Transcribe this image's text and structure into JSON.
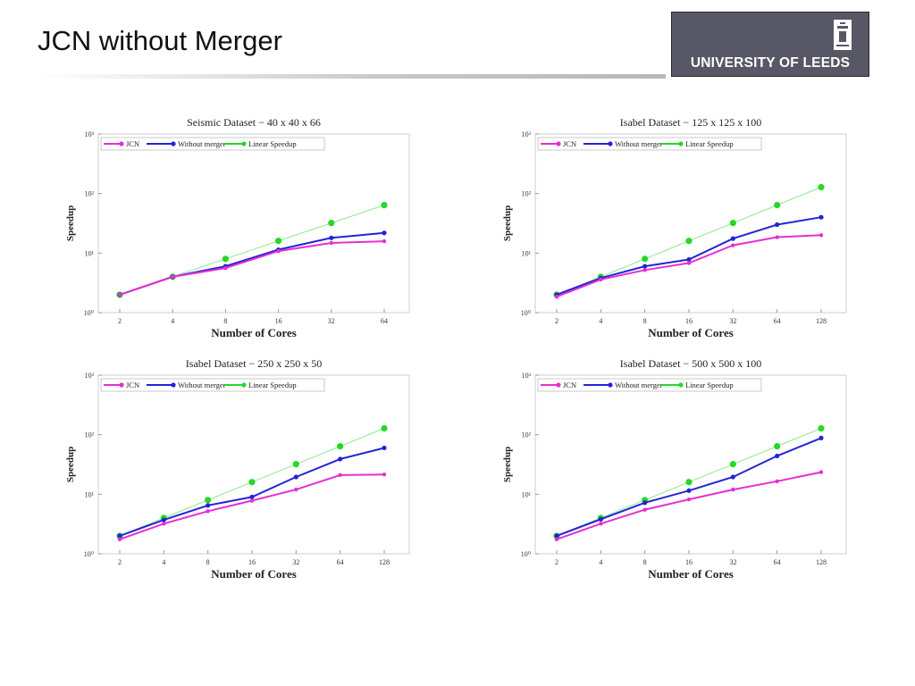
{
  "slide": {
    "title": "JCN without Merger",
    "logo_text": "UNIVERSITY OF LEEDS"
  },
  "colors": {
    "jcn": "#e52fd3",
    "without_merger": "#2323d6",
    "linear": "#28d728"
  },
  "chart_data": [
    {
      "type": "line",
      "title": "Seismic Dataset − 40 x 40 x 66",
      "xlabel": "Number of Cores",
      "ylabel": "Speedup",
      "y_scale": "log",
      "ylim": [
        1,
        1000
      ],
      "y_ticks": [
        "10⁰",
        "10¹",
        "10²",
        "10³"
      ],
      "categories": [
        "2",
        "4",
        "8",
        "16",
        "32",
        "64"
      ],
      "legend": [
        "JCN",
        "Without merger",
        "Linear Speedup"
      ],
      "series": [
        {
          "name": "JCN",
          "values": [
            2,
            4,
            5.6,
            10.8,
            14.8,
            15.8
          ]
        },
        {
          "name": "Without merger",
          "values": [
            2,
            4,
            6,
            11.4,
            18,
            21.8
          ]
        },
        {
          "name": "Linear Speedup",
          "values": [
            2,
            4,
            8,
            16,
            32,
            64
          ]
        }
      ]
    },
    {
      "type": "line",
      "title": "Isabel Dataset − 125 x 125 x 100",
      "xlabel": "Number of Cores",
      "ylabel": "Speedup",
      "y_scale": "log",
      "ylim": [
        1,
        1000
      ],
      "y_ticks": [
        "10⁰",
        "10¹",
        "10²",
        "10³"
      ],
      "categories": [
        "2",
        "4",
        "8",
        "16",
        "32",
        "64",
        "128"
      ],
      "legend": [
        "JCN",
        "Without merger",
        "Linear Speedup"
      ],
      "series": [
        {
          "name": "JCN",
          "values": [
            1.85,
            3.6,
            5.2,
            6.8,
            13.5,
            18.5,
            20
          ]
        },
        {
          "name": "Without merger",
          "values": [
            2,
            3.8,
            6,
            7.8,
            17.5,
            30,
            40
          ]
        },
        {
          "name": "Linear Speedup",
          "values": [
            2,
            4,
            8,
            16,
            32,
            64,
            128
          ]
        }
      ]
    },
    {
      "type": "line",
      "title": "Isabel Dataset − 250 x 250 x 50",
      "xlabel": "Number of Cores",
      "ylabel": "Speedup",
      "y_scale": "log",
      "ylim": [
        1,
        1000
      ],
      "y_ticks": [
        "10⁰",
        "10¹",
        "10²",
        "10³"
      ],
      "categories": [
        "2",
        "4",
        "8",
        "16",
        "32",
        "64",
        "128"
      ],
      "legend": [
        "JCN",
        "Without merger",
        "Linear Speedup"
      ],
      "series": [
        {
          "name": "JCN",
          "values": [
            1.75,
            3.2,
            5.2,
            7.8,
            12,
            21,
            21.5
          ]
        },
        {
          "name": "Without merger",
          "values": [
            2,
            3.7,
            6.5,
            9,
            19.5,
            39,
            60
          ]
        },
        {
          "name": "Linear Speedup",
          "values": [
            2,
            4,
            8,
            16,
            32,
            64,
            128
          ]
        }
      ]
    },
    {
      "type": "line",
      "title": "Isabel Dataset − 500 x 500 x 100",
      "xlabel": "Number of Cores",
      "ylabel": "Speedup",
      "y_scale": "log",
      "ylim": [
        1,
        1000
      ],
      "y_ticks": [
        "10⁰",
        "10¹",
        "10²",
        "10³"
      ],
      "categories": [
        "2",
        "4",
        "8",
        "16",
        "32",
        "64",
        "128"
      ],
      "legend": [
        "JCN",
        "Without merger",
        "Linear Speedup"
      ],
      "series": [
        {
          "name": "JCN",
          "values": [
            1.75,
            3.2,
            5.5,
            8.2,
            12,
            16.5,
            23.5
          ]
        },
        {
          "name": "Without merger",
          "values": [
            2,
            3.8,
            7.2,
            11.5,
            19.5,
            44,
            88
          ]
        },
        {
          "name": "Linear Speedup",
          "values": [
            2,
            4,
            8,
            16,
            32,
            64,
            128
          ]
        }
      ]
    }
  ]
}
